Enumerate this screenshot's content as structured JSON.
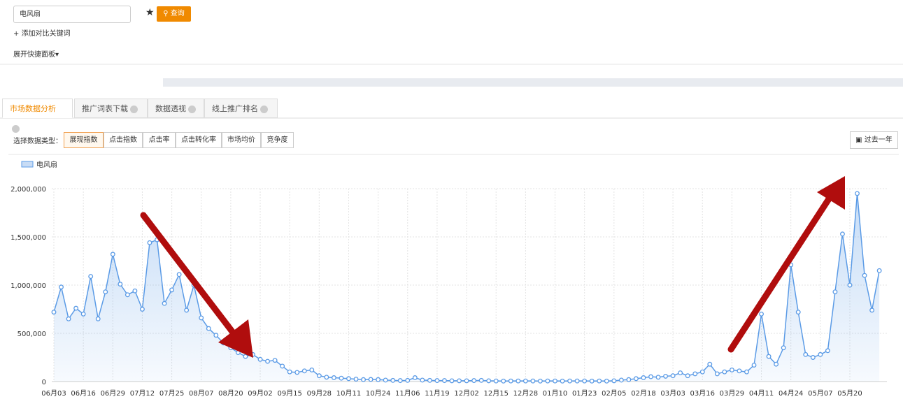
{
  "search": {
    "input": "电风扇",
    "button": "查询",
    "add_compare": "添加对比关键词",
    "expand_panel": "展开快捷面板"
  },
  "tabs": [
    "市场数据分析",
    "推广词表下载",
    "数据透视",
    "线上推广排名"
  ],
  "data_type": {
    "label": "选择数据类型：",
    "options": [
      "展现指数",
      "点击指数",
      "点击率",
      "点击转化率",
      "市场均价",
      "竞争度"
    ],
    "period": "过去一年"
  },
  "chart_data": {
    "type": "line",
    "grid": true,
    "categories": [
      "06月03",
      null,
      null,
      null,
      "06月16",
      null,
      null,
      null,
      "06月29",
      null,
      null,
      null,
      "07月12",
      null,
      null,
      null,
      "07月25",
      null,
      null,
      null,
      "08月07",
      null,
      null,
      null,
      "08月20",
      null,
      null,
      null,
      "09月02",
      null,
      null,
      null,
      "09月15",
      null,
      null,
      null,
      "09月28",
      null,
      null,
      null,
      "10月11",
      null,
      null,
      null,
      "10月24",
      null,
      null,
      null,
      "11月06",
      null,
      null,
      null,
      "11月19",
      null,
      null,
      null,
      "12月02",
      null,
      null,
      null,
      "12月15",
      null,
      null,
      null,
      "12月28",
      null,
      null,
      null,
      "01月10",
      null,
      null,
      null,
      "01月23",
      null,
      null,
      null,
      "02月05",
      null,
      null,
      null,
      "02月18",
      null,
      null,
      null,
      "03月03",
      null,
      null,
      null,
      "03月16",
      null,
      null,
      null,
      "03月29",
      null,
      null,
      null,
      "04月11",
      null,
      null,
      null,
      "04月24",
      null,
      null,
      null,
      "05月07",
      null,
      null,
      null,
      "05月20",
      null,
      null,
      null,
      null
    ],
    "series": [
      {
        "name": "电风扇",
        "color": "#5b9be6",
        "values": [
          720000,
          980000,
          650000,
          760000,
          700000,
          1090000,
          650000,
          930000,
          1320000,
          1010000,
          900000,
          940000,
          750000,
          1440000,
          1470000,
          810000,
          950000,
          1110000,
          740000,
          1000000,
          660000,
          550000,
          480000,
          400000,
          350000,
          300000,
          260000,
          280000,
          230000,
          210000,
          220000,
          160000,
          100000,
          95000,
          110000,
          120000,
          60000,
          45000,
          40000,
          35000,
          30000,
          25000,
          20000,
          22000,
          20000,
          15000,
          12000,
          10000,
          12000,
          40000,
          15000,
          12000,
          10000,
          10000,
          8000,
          8000,
          8000,
          10000,
          12000,
          8000,
          6000,
          5000,
          6000,
          6000,
          6000,
          6000,
          5000,
          6000,
          6000,
          5000,
          6000,
          6000,
          6000,
          5000,
          6000,
          5000,
          8000,
          15000,
          20000,
          30000,
          40000,
          50000,
          45000,
          55000,
          60000,
          90000,
          60000,
          80000,
          100000,
          180000,
          80000,
          100000,
          120000,
          110000,
          100000,
          170000,
          700000,
          260000,
          180000,
          350000,
          1210000,
          720000,
          280000,
          250000,
          280000,
          320000,
          930000,
          1530000,
          1000000,
          1950000,
          1100000,
          740000,
          1150000
        ]
      }
    ],
    "ylim": [
      0,
      2000000
    ],
    "yticks": [
      0,
      {
        "value": 500000,
        "label": "500,000"
      },
      {
        "value": 1000000,
        "label": "1,000,000"
      },
      {
        "value": 1500000,
        "label": "1,500,000"
      },
      {
        "value": 2000000,
        "label": "2,000,000"
      }
    ]
  }
}
